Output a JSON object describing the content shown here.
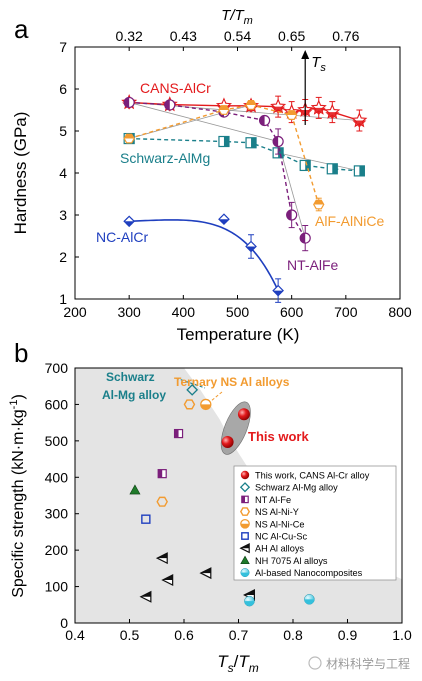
{
  "chart_data": [
    {
      "panel_label": "a",
      "type": "line",
      "xlabel": "Temperature (K)",
      "ylabel": "Hardness (GPa)",
      "top_axis_label": "T/T",
      "top_axis_label_sub": "m",
      "xlim": [
        200,
        800
      ],
      "ylim": [
        1,
        7
      ],
      "x_ticks": [
        200,
        300,
        400,
        500,
        600,
        700,
        800
      ],
      "y_ticks": [
        1,
        2,
        3,
        4,
        5,
        6,
        7
      ],
      "top_ticks": [
        {
          "x": 300,
          "label": "0.32"
        },
        {
          "x": 400,
          "label": "0.43"
        },
        {
          "x": 500,
          "label": "0.54"
        },
        {
          "x": 600,
          "label": "0.65"
        },
        {
          "x": 700,
          "label": "0.76"
        }
      ],
      "ts_marker": {
        "label": "T",
        "label_sub": "s",
        "x": 625
      },
      "series": [
        {
          "name": "CANS-AlCr",
          "color": "#e31a1c",
          "marker": "star",
          "x": [
            300,
            375,
            475,
            525,
            575,
            600,
            625,
            650,
            675,
            725
          ],
          "y": [
            5.68,
            5.63,
            5.6,
            5.6,
            5.58,
            5.45,
            5.5,
            5.55,
            5.45,
            5.25
          ]
        },
        {
          "name": "Schwarz-AlMg",
          "color": "#1a7f8a",
          "marker": "half-square",
          "x": [
            300,
            475,
            525,
            575,
            625,
            675,
            725
          ],
          "y": [
            4.82,
            4.75,
            4.72,
            4.48,
            4.18,
            4.1,
            4.05
          ]
        },
        {
          "name": "NC-AlCr",
          "color": "#1f3fbf",
          "marker": "half-diamond",
          "x": [
            300,
            475,
            525,
            575
          ],
          "y": [
            2.85,
            2.9,
            2.25,
            1.2
          ]
        },
        {
          "name": "NT-AlFe",
          "color": "#7b1f7b",
          "marker": "half-circle",
          "x": [
            300,
            375,
            475,
            550,
            575,
            600,
            625
          ],
          "y": [
            5.68,
            5.62,
            5.45,
            5.25,
            4.75,
            3.0,
            2.45
          ]
        },
        {
          "name": "AlF-AlNiCe",
          "color": "#f29b30",
          "marker": "half-hexagon",
          "x": [
            300,
            475,
            525,
            600,
            650
          ],
          "y": [
            4.82,
            5.5,
            5.62,
            5.38,
            3.25
          ]
        }
      ]
    },
    {
      "panel_label": "b",
      "type": "scatter",
      "xlabel": "T",
      "xlabel_sub_s": "s",
      "xlabel_sub_m": "m",
      "ylabel": "Specific strength (kN·m·kg",
      "ylabel_sup": "-1",
      "ylabel_end": ")",
      "xlim": [
        0.4,
        1.0
      ],
      "ylim": [
        0,
        700
      ],
      "x_ticks": [
        "0.4",
        "0.5",
        "0.6",
        "0.7",
        "0.8",
        "0.9",
        "1.0"
      ],
      "y_ticks": [
        0,
        100,
        200,
        300,
        400,
        500,
        600,
        700
      ],
      "annotations": {
        "schwarz_line1": "Schwarz",
        "schwarz_line2": "Al-Mg alloy",
        "ternary": "Ternary NS Al alloys",
        "this_work": "This work"
      },
      "legend": [
        {
          "name": "This work, CANS Al-Cr alloy",
          "marker": "sphere-red",
          "color": "#e31a1c"
        },
        {
          "name": "Schwarz Al-Mg alloy",
          "marker": "diamond-open",
          "color": "#1a7f8a"
        },
        {
          "name": "NT Al-Fe",
          "marker": "half-square",
          "color": "#7b1f7b"
        },
        {
          "name": "NS Al-Ni-Y",
          "marker": "hexagon-open",
          "color": "#f29b30"
        },
        {
          "name": "NS Al-Ni-Ce",
          "marker": "half-circle",
          "color": "#f29b30"
        },
        {
          "name": "NC Al-Cu-Sc",
          "marker": "square-open",
          "color": "#1f3fbf"
        },
        {
          "name": "AH Al alloys",
          "marker": "half-triangle-left",
          "color": "#111111"
        },
        {
          "name": "NH 7075 Al alloys",
          "marker": "triangle-filled",
          "color": "#1f7a2a"
        },
        {
          "name": "Al-based Nanocomposites",
          "marker": "half-circle-cyan",
          "color": "#35c0dc"
        }
      ],
      "points": [
        {
          "series": "This work, CANS Al-Cr alloy",
          "x": 0.71,
          "y": 573
        },
        {
          "series": "This work, CANS Al-Cr alloy",
          "x": 0.68,
          "y": 497
        },
        {
          "series": "Schwarz Al-Mg alloy",
          "x": 0.615,
          "y": 640
        },
        {
          "series": "NT Al-Fe",
          "x": 0.59,
          "y": 520
        },
        {
          "series": "NT Al-Fe",
          "x": 0.56,
          "y": 410
        },
        {
          "series": "NS Al-Ni-Y",
          "x": 0.61,
          "y": 600
        },
        {
          "series": "NS Al-Ni-Y",
          "x": 0.56,
          "y": 333
        },
        {
          "series": "NS Al-Ni-Ce",
          "x": 0.64,
          "y": 600
        },
        {
          "series": "NC Al-Cu-Sc",
          "x": 0.53,
          "y": 285
        },
        {
          "series": "AH Al alloys",
          "x": 0.56,
          "y": 178
        },
        {
          "series": "AH Al alloys",
          "x": 0.57,
          "y": 118
        },
        {
          "series": "AH Al alloys",
          "x": 0.64,
          "y": 137
        },
        {
          "series": "AH Al alloys",
          "x": 0.53,
          "y": 72
        },
        {
          "series": "AH Al alloys",
          "x": 0.72,
          "y": 77
        },
        {
          "series": "NH 7075 Al alloys",
          "x": 0.51,
          "y": 365
        },
        {
          "series": "Al-based Nanocomposites",
          "x": 0.72,
          "y": 60
        },
        {
          "series": "Al-based Nanocomposites",
          "x": 0.83,
          "y": 65
        }
      ]
    }
  ],
  "watermark": "材料科学与工程"
}
